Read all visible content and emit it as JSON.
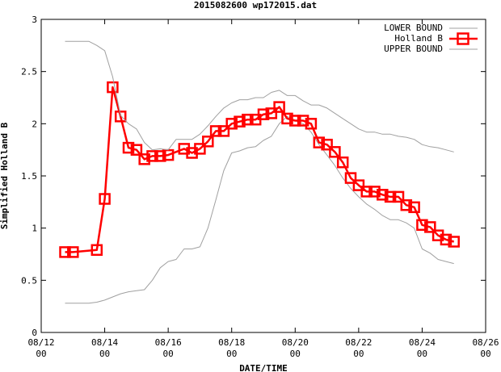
{
  "chart_data": {
    "type": "line",
    "title": "2015082600 wp172015.dat",
    "xlabel": "DATE/TIME",
    "ylabel": "Simplified Holland B",
    "ylim": [
      0,
      3
    ],
    "yticks": [
      "0",
      "0.5",
      "1",
      "1.5",
      "2",
      "2.5",
      "3"
    ],
    "xlim_days": [
      12,
      26
    ],
    "xticks": [
      {
        "day": 12,
        "label_date": "08/12",
        "label_hour": "00"
      },
      {
        "day": 14,
        "label_date": "08/14",
        "label_hour": "00"
      },
      {
        "day": 16,
        "label_date": "08/16",
        "label_hour": "00"
      },
      {
        "day": 18,
        "label_date": "08/18",
        "label_hour": "00"
      },
      {
        "day": 20,
        "label_date": "08/20",
        "label_hour": "00"
      },
      {
        "day": 22,
        "label_date": "08/22",
        "label_hour": "00"
      },
      {
        "day": 24,
        "label_date": "08/24",
        "label_hour": "00"
      },
      {
        "day": 26,
        "label_date": "08/26",
        "label_hour": "00"
      }
    ],
    "legend_position": "top-right",
    "colors": {
      "holland": "#ff0000",
      "bounds": "#a0a0a0",
      "axis": "#000000"
    },
    "series": [
      {
        "name": "LOWER BOUND",
        "style": "line",
        "x": [
          12.75,
          13.5,
          13.75,
          14.0,
          14.25,
          14.5,
          14.75,
          15.0,
          15.25,
          15.5,
          15.75,
          16.0,
          16.25,
          16.5,
          16.75,
          17.0,
          17.25,
          17.5,
          17.75,
          18.0,
          18.25,
          18.5,
          18.75,
          19.0,
          19.25,
          19.5,
          19.75,
          20.0,
          20.25,
          20.5,
          20.75,
          21.0,
          21.25,
          21.5,
          21.75,
          22.0,
          22.25,
          22.5,
          22.75,
          23.0,
          23.25,
          23.5,
          23.75,
          24.0,
          24.25,
          24.5,
          24.75,
          25.0
        ],
        "values": [
          0.28,
          0.28,
          0.29,
          0.31,
          0.34,
          0.37,
          0.39,
          0.4,
          0.41,
          0.5,
          0.62,
          0.68,
          0.7,
          0.8,
          0.8,
          0.82,
          1.0,
          1.27,
          1.55,
          1.72,
          1.74,
          1.77,
          1.78,
          1.84,
          1.88,
          2.0,
          2.07,
          2.03,
          2.0,
          1.92,
          1.8,
          1.7,
          1.6,
          1.48,
          1.38,
          1.3,
          1.23,
          1.18,
          1.12,
          1.08,
          1.08,
          1.05,
          1.0,
          0.8,
          0.76,
          0.7,
          0.68,
          0.66
        ]
      },
      {
        "name": "Holland B",
        "style": "line+square",
        "x": [
          12.75,
          13.0,
          13.75,
          14.0,
          14.25,
          14.5,
          14.75,
          15.0,
          15.25,
          15.5,
          15.75,
          16.0,
          16.5,
          16.75,
          17.0,
          17.25,
          17.5,
          17.75,
          18.0,
          18.25,
          18.5,
          18.75,
          19.0,
          19.25,
          19.5,
          19.75,
          20.0,
          20.25,
          20.5,
          20.75,
          21.0,
          21.25,
          21.5,
          21.75,
          22.0,
          22.25,
          22.5,
          22.75,
          23.0,
          23.25,
          23.5,
          23.75,
          24.0,
          24.25,
          24.5,
          24.75,
          25.0
        ],
        "values": [
          0.77,
          0.77,
          0.79,
          1.28,
          2.35,
          2.07,
          1.77,
          1.75,
          1.66,
          1.69,
          1.69,
          1.7,
          1.76,
          1.72,
          1.76,
          1.83,
          1.93,
          1.93,
          2.0,
          2.02,
          2.04,
          2.04,
          2.09,
          2.1,
          2.16,
          2.05,
          2.03,
          2.03,
          2.0,
          1.82,
          1.8,
          1.73,
          1.63,
          1.48,
          1.41,
          1.35,
          1.35,
          1.32,
          1.3,
          1.3,
          1.22,
          1.2,
          1.03,
          1.01,
          0.93,
          0.89,
          0.87
        ]
      },
      {
        "name": "UPPER BOUND",
        "style": "line",
        "x": [
          12.75,
          13.5,
          13.75,
          14.0,
          14.25,
          14.5,
          14.75,
          15.0,
          15.25,
          15.5,
          15.75,
          16.0,
          16.25,
          16.5,
          16.75,
          17.0,
          17.25,
          17.5,
          17.75,
          18.0,
          18.25,
          18.5,
          18.75,
          19.0,
          19.25,
          19.5,
          19.75,
          20.0,
          20.25,
          20.5,
          20.75,
          21.0,
          21.25,
          21.5,
          21.75,
          22.0,
          22.25,
          22.5,
          22.75,
          23.0,
          23.25,
          23.5,
          23.75,
          24.0,
          24.25,
          24.5,
          24.75,
          25.0
        ],
        "values": [
          2.79,
          2.79,
          2.75,
          2.7,
          2.45,
          2.08,
          2.0,
          1.95,
          1.82,
          1.75,
          1.76,
          1.75,
          1.85,
          1.85,
          1.85,
          1.9,
          1.98,
          2.07,
          2.15,
          2.2,
          2.23,
          2.23,
          2.25,
          2.25,
          2.3,
          2.32,
          2.27,
          2.27,
          2.22,
          2.18,
          2.18,
          2.15,
          2.1,
          2.05,
          2.0,
          1.95,
          1.92,
          1.92,
          1.9,
          1.9,
          1.88,
          1.87,
          1.85,
          1.8,
          1.78,
          1.77,
          1.75,
          1.73
        ]
      }
    ]
  }
}
